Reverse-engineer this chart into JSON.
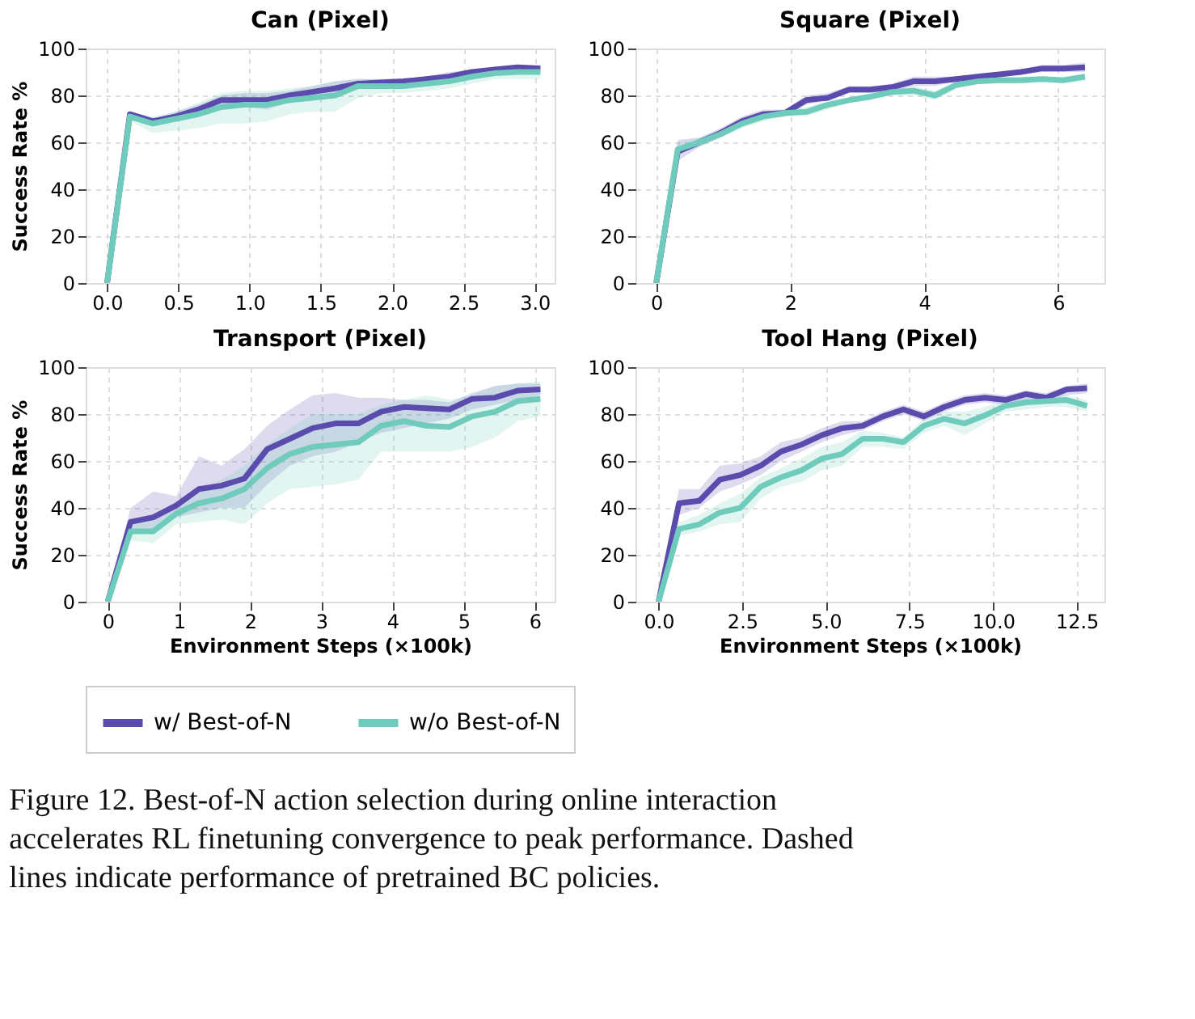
{
  "chart_data": [
    {
      "type": "line",
      "title": "Can (Pixel)",
      "ylabel": "Success Rate %",
      "xlim": [
        -0.15,
        3.14
      ],
      "ylim": [
        0,
        100
      ],
      "yticks": [
        0,
        20,
        40,
        60,
        80,
        100
      ],
      "xticks": [
        {
          "value": 0,
          "label": "0.0"
        },
        {
          "value": 0.5,
          "label": "0.5"
        },
        {
          "value": 1,
          "label": "1.0"
        },
        {
          "value": 1.5,
          "label": "1.5"
        },
        {
          "value": 2,
          "label": "2.0"
        },
        {
          "value": 2.5,
          "label": "2.5"
        },
        {
          "value": 3,
          "label": "3.0"
        }
      ],
      "grid": true,
      "legend": "bottom",
      "x": [
        0,
        0.16,
        0.32,
        0.48,
        0.64,
        0.8,
        0.96,
        1.12,
        1.28,
        1.44,
        1.6,
        1.76,
        1.92,
        2.08,
        2.24,
        2.4,
        2.56,
        2.72,
        2.88,
        3.04
      ],
      "series": [
        {
          "name": "w/ Best-of-N",
          "color": "#5a4bad",
          "values": [
            0,
            72,
            69,
            71,
            74,
            78,
            78,
            78,
            80,
            81.5,
            83,
            85,
            85.5,
            86,
            87,
            88,
            90,
            91,
            92,
            91.5
          ],
          "lower": [
            0,
            70,
            67,
            69,
            71,
            75,
            75,
            74,
            77,
            79,
            80,
            83,
            84,
            84,
            85,
            86,
            88,
            89,
            90,
            90
          ],
          "upper": [
            0,
            73,
            70,
            73,
            76,
            80,
            81,
            81,
            82,
            84,
            86,
            87,
            87,
            87,
            88,
            90,
            91,
            92,
            93,
            93
          ]
        },
        {
          "name": "w/o Best-of-N",
          "color": "#6fcbbb",
          "values": [
            0,
            71,
            68,
            70,
            72,
            75,
            76,
            76,
            78,
            79,
            80,
            84,
            84,
            84,
            85,
            86,
            88,
            89.5,
            90,
            90
          ],
          "lower": [
            0,
            69,
            64,
            65,
            66,
            68,
            68,
            69,
            72,
            73,
            73,
            79,
            81,
            81,
            82,
            83,
            85,
            87,
            87,
            87
          ],
          "upper": [
            0,
            73,
            71,
            73,
            77,
            81,
            82,
            82,
            83,
            84,
            86,
            87,
            87,
            87,
            88,
            89,
            91,
            92,
            92,
            92
          ]
        }
      ]
    },
    {
      "type": "line",
      "title": "Square (Pixel)",
      "xlim": [
        -0.31,
        6.69
      ],
      "ylim": [
        0,
        100
      ],
      "yticks": [
        0,
        20,
        40,
        60,
        80,
        100
      ],
      "xticks": [
        0,
        2,
        4,
        6
      ],
      "grid": true,
      "legend": "bottom",
      "x": [
        0,
        0.32,
        0.64,
        0.96,
        1.28,
        1.6,
        1.92,
        2.24,
        2.56,
        2.88,
        3.2,
        3.52,
        3.84,
        4.16,
        4.48,
        4.8,
        5.12,
        5.44,
        5.76,
        6.08,
        6.4
      ],
      "series": [
        {
          "name": "w/ Best-of-N",
          "color": "#5a4bad",
          "values": [
            0,
            56,
            60,
            64,
            69,
            72,
            72.5,
            78,
            79,
            82.5,
            82.5,
            83.5,
            86,
            86,
            87,
            88,
            89,
            90,
            91.5,
            91.5,
            92
          ],
          "lower": [
            0,
            52,
            58,
            62,
            67,
            70,
            71,
            76,
            78,
            81,
            81,
            82,
            84,
            84,
            86,
            87,
            88,
            89,
            90,
            90,
            90
          ],
          "upper": [
            0,
            61,
            62,
            66,
            71,
            74,
            74,
            80,
            81,
            84,
            84,
            85,
            88,
            88,
            88,
            89,
            90,
            91,
            93,
            93,
            94
          ]
        },
        {
          "name": "w/o Best-of-N",
          "color": "#6fcbbb",
          "values": [
            0,
            57,
            60,
            63.5,
            68,
            71,
            72.5,
            73,
            76,
            78,
            79.5,
            81.5,
            82,
            80,
            84.5,
            86,
            86.5,
            86.5,
            87,
            86.5,
            88
          ],
          "lower": [
            0,
            55,
            58,
            62,
            66,
            69,
            71,
            71,
            74,
            77,
            78,
            80,
            80,
            78,
            83,
            85,
            85,
            85,
            86,
            85,
            86
          ],
          "upper": [
            0,
            60,
            62,
            65,
            70,
            73,
            74,
            75,
            78,
            79,
            81,
            83,
            84,
            82,
            86,
            87,
            88,
            88,
            88,
            88,
            89
          ]
        }
      ]
    },
    {
      "type": "line",
      "title": "Transport (Pixel)",
      "xlabel": "Environment Steps (×100k)",
      "ylabel": "Success Rate %",
      "xlim": [
        -0.31,
        6.28
      ],
      "ylim": [
        0,
        100
      ],
      "yticks": [
        0,
        20,
        40,
        60,
        80,
        100
      ],
      "xticks": [
        0,
        1,
        2,
        3,
        4,
        5,
        6
      ],
      "grid": true,
      "legend": "bottom",
      "x": [
        0,
        0.32,
        0.64,
        0.96,
        1.28,
        1.6,
        1.92,
        2.24,
        2.56,
        2.88,
        3.2,
        3.52,
        3.84,
        4.16,
        4.48,
        4.8,
        5.12,
        5.44,
        5.76,
        6.08
      ],
      "series": [
        {
          "name": "w/ Best-of-N",
          "color": "#5a4bad",
          "values": [
            0,
            34,
            36,
            41,
            48,
            49.5,
            52.5,
            65,
            69.5,
            74,
            76,
            76,
            81,
            83,
            82.5,
            82,
            86.5,
            87,
            90,
            90.5
          ],
          "lower": [
            0,
            30,
            30,
            36,
            38,
            40,
            40,
            50,
            58,
            62,
            64,
            68,
            72,
            74,
            76,
            78,
            82,
            84,
            86,
            88
          ],
          "upper": [
            0,
            40,
            47,
            45,
            62,
            58,
            65,
            75,
            82,
            88,
            89,
            87,
            87,
            86,
            86,
            85,
            89,
            92,
            93,
            93
          ]
        },
        {
          "name": "w/o Best-of-N",
          "color": "#6fcbbb",
          "values": [
            0,
            30,
            30,
            37.5,
            42,
            44,
            48,
            57,
            63,
            66,
            67,
            68,
            75,
            77,
            75,
            74.5,
            79,
            81,
            85.5,
            86.5
          ],
          "lower": [
            0,
            26,
            25,
            33,
            34,
            35,
            33,
            42,
            48,
            49,
            50,
            52,
            64,
            64,
            64,
            64,
            66,
            70,
            77,
            79
          ],
          "upper": [
            0,
            33,
            35,
            42,
            48,
            52,
            58,
            67,
            74,
            80,
            80,
            80,
            84,
            86,
            88,
            86,
            88,
            92,
            93,
            94
          ]
        }
      ]
    },
    {
      "type": "line",
      "title": "Tool Hang (Pixel)",
      "xlabel": "Environment Steps (×100k)",
      "xlim": [
        -0.69,
        13.33
      ],
      "ylim": [
        0,
        100
      ],
      "yticks": [
        0,
        20,
        40,
        60,
        80,
        100
      ],
      "xticks": [
        {
          "value": 0,
          "label": "0.0"
        },
        {
          "value": 2.5,
          "label": "2.5"
        },
        {
          "value": 5,
          "label": "5.0"
        },
        {
          "value": 7.5,
          "label": "7.5"
        },
        {
          "value": 10,
          "label": "10.0"
        },
        {
          "value": 12.5,
          "label": "12.5"
        }
      ],
      "grid": true,
      "legend": "bottom",
      "x": [
        0,
        0.61,
        1.22,
        1.83,
        2.44,
        3.05,
        3.66,
        4.27,
        4.88,
        5.49,
        6.1,
        6.71,
        7.32,
        7.93,
        8.54,
        9.15,
        9.76,
        10.37,
        10.98,
        11.59,
        12.2,
        12.81
      ],
      "series": [
        {
          "name": "w/ Best-of-N",
          "color": "#5a4bad",
          "values": [
            0,
            42,
            43,
            52,
            54,
            58,
            64,
            67,
            71,
            74,
            75,
            79,
            82,
            79,
            83,
            86,
            87,
            86,
            88.5,
            87,
            90.5,
            91
          ],
          "lower": [
            0,
            37,
            40,
            47,
            50,
            54,
            60,
            64,
            68,
            71,
            73,
            77,
            80,
            77,
            81,
            84,
            85,
            84,
            86,
            85,
            88,
            89
          ],
          "upper": [
            0,
            48,
            48,
            58,
            59,
            62,
            68,
            70,
            74,
            77,
            77,
            81,
            84,
            81,
            85,
            88,
            89,
            88,
            90,
            89,
            92,
            93
          ]
        },
        {
          "name": "w/o Best-of-N",
          "color": "#6fcbbb",
          "values": [
            0,
            31,
            33,
            38,
            40,
            49,
            53,
            56,
            61,
            63,
            69.5,
            69.5,
            68,
            75,
            78,
            76,
            79.5,
            83.5,
            85,
            85.5,
            86,
            83.5
          ],
          "lower": [
            0,
            28,
            30,
            33,
            34,
            44,
            49,
            51,
            56,
            58,
            66,
            66,
            65,
            72,
            75,
            71,
            76,
            81,
            82,
            83,
            83,
            81
          ],
          "upper": [
            0,
            34,
            37,
            42,
            46,
            53,
            57,
            61,
            66,
            68,
            73,
            72,
            70,
            78,
            81,
            81,
            83,
            86,
            87,
            88,
            88,
            86
          ]
        }
      ],
      "annotations": [
        "Figure 12. Best-of-N action selection during online interaction accelerates RL finetuning convergence to peak performance. Dashed lines indicate performance of pretrained BC policies."
      ]
    }
  ]
}
